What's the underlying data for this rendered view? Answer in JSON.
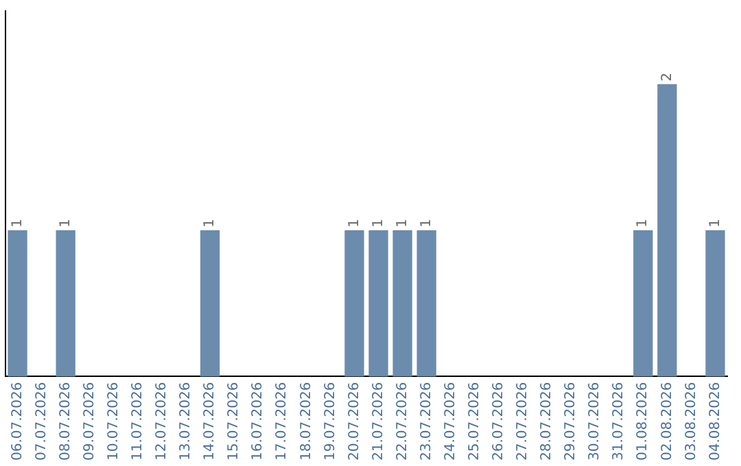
{
  "chart_data": {
    "type": "bar",
    "categories": [
      "06.07.2026",
      "07.07.2026",
      "08.07.2026",
      "09.07.2026",
      "10.07.2026",
      "11.07.2026",
      "12.07.2026",
      "13.07.2026",
      "14.07.2026",
      "15.07.2026",
      "16.07.2026",
      "17.07.2026",
      "18.07.2026",
      "19.07.2026",
      "20.07.2026",
      "21.07.2026",
      "22.07.2026",
      "23.07.2026",
      "24.07.2026",
      "25.07.2026",
      "26.07.2026",
      "27.07.2026",
      "28.07.2026",
      "29.07.2026",
      "30.07.2026",
      "31.07.2026",
      "01.08.2026",
      "02.08.2026",
      "03.08.2026",
      "04.08.2026"
    ],
    "values": [
      1,
      0,
      1,
      0,
      0,
      0,
      0,
      0,
      1,
      0,
      0,
      0,
      0,
      0,
      1,
      1,
      1,
      1,
      0,
      0,
      0,
      0,
      0,
      0,
      0,
      0,
      1,
      2,
      0,
      1
    ],
    "value_labels": [
      "1",
      null,
      "1",
      null,
      null,
      null,
      null,
      null,
      "1",
      null,
      null,
      null,
      null,
      null,
      "1",
      "1",
      "1",
      "1",
      null,
      null,
      null,
      null,
      null,
      null,
      null,
      null,
      "1",
      "2",
      null,
      "1"
    ],
    "color": "#6b8cad",
    "grid": false,
    "legend": false
  }
}
